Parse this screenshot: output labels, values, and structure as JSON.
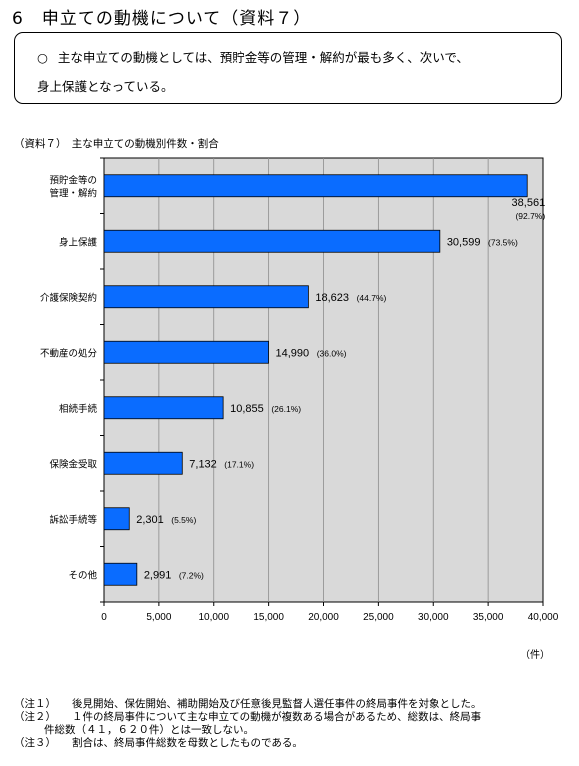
{
  "section_title": "6　申立ての動機について（資料７）",
  "summary": {
    "bullet": "○",
    "line1": "主な申立ての動機としては、預貯金等の管理・解約が最も多く、次いで、",
    "line2": "身上保護となっている。"
  },
  "chart_caption": "（資料７）　主な申立ての動機別件数・割合",
  "chart_data": {
    "type": "bar",
    "orientation": "horizontal",
    "categories": [
      [
        "預貯金等の",
        "管理・解約"
      ],
      [
        "身上保護"
      ],
      [
        "介護保険契約"
      ],
      [
        "不動産の処分"
      ],
      [
        "相続手続"
      ],
      [
        "保険金受取"
      ],
      [
        "訴訟手続等"
      ],
      [
        "その他"
      ]
    ],
    "values": [
      38561,
      30599,
      18623,
      14990,
      10855,
      7132,
      2301,
      2991
    ],
    "value_labels": [
      "38,561",
      "30,599",
      "18,623",
      "14,990",
      "10,855",
      "7,132",
      "2,301",
      "2,991"
    ],
    "percent_labels": [
      "(92.7%)",
      "(73.5%)",
      "(44.7%)",
      "(36.0%)",
      "(26.1%)",
      "(17.1%)",
      "(5.5%)",
      "(7.2%)"
    ],
    "xlim": [
      0,
      40000
    ],
    "xticks": [
      "0",
      "5,000",
      "10,000",
      "15,000",
      "20,000",
      "25,000",
      "30,000",
      "35,000",
      "40,000"
    ],
    "unit_label": "（件）",
    "grid": true,
    "bar_color": "#0a6cff",
    "plot_background": "#d9d9d9"
  },
  "notes": [
    {
      "idx": "（注１）",
      "text": "後見開始、保佐開始、補助開始及び任意後見監督人選任事件の終局事件を対象とした。"
    },
    {
      "idx": "（注２）",
      "text": "１件の終局事件について主な申立ての動機が複数ある場合があるため、総数は、終局事",
      "cont": "件総数（４１，６２０件）とは一致しない。"
    },
    {
      "idx": "（注３）",
      "text": "割合は、終局事件総数を母数としたものである。"
    }
  ]
}
